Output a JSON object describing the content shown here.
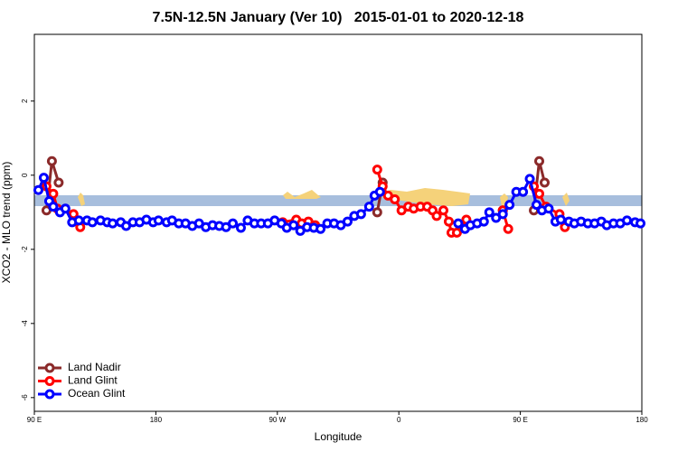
{
  "chart_data": {
    "type": "line",
    "title": "7.5N-12.5N January (Ver 10)   2015-01-01 to 2020-12-18",
    "x_label": "Longitude",
    "y_label": "XCO2 - MLO trend (ppm)",
    "xlim": [
      90,
      540
    ],
    "ylim": [
      -6.37,
      3.8
    ],
    "xticks": [
      {
        "value": 90,
        "label": "90 E"
      },
      {
        "value": 180,
        "label": "180"
      },
      {
        "value": 270,
        "label": "90 W"
      },
      {
        "value": 360,
        "label": "0"
      },
      {
        "value": 450,
        "label": "90 E"
      },
      {
        "value": 540,
        "label": "180"
      }
    ],
    "yticks": [
      -6,
      -4,
      -2,
      0,
      2
    ],
    "legend": "bottom-left",
    "series": [
      {
        "name": "Land Nadir",
        "color": "#8b2a2a",
        "x": [
          99,
          103,
          108,
          null,
          344,
          348,
          null,
          437,
          null,
          460,
          464,
          468
        ],
        "values": [
          -0.95,
          0.38,
          -0.2,
          null,
          -1.0,
          -0.2,
          null,
          -0.95,
          null,
          -0.95,
          0.38,
          -0.2
        ]
      },
      {
        "name": "Land Glint",
        "color": "#ff0000",
        "x": [
          99,
          104,
          107,
          119,
          124,
          null,
          274,
          284,
          288,
          293,
          298,
          null,
          344,
          348,
          352,
          357,
          362,
          367,
          371,
          376,
          381,
          385,
          388,
          393,
          397,
          399,
          403,
          410,
          null,
          437,
          441,
          null,
          460,
          464,
          469,
          479,
          483
        ],
        "values": [
          -0.3,
          -0.5,
          -0.9,
          -1.05,
          -1.4,
          null,
          -1.27,
          -1.2,
          -1.3,
          -1.25,
          -1.35,
          null,
          0.15,
          -0.3,
          -0.55,
          -0.65,
          -0.95,
          -0.85,
          -0.9,
          -0.85,
          -0.85,
          -0.95,
          -1.1,
          -0.95,
          -1.25,
          -1.55,
          -1.55,
          -1.2,
          null,
          -0.95,
          -1.45,
          null,
          -0.3,
          -0.5,
          -0.85,
          -1.05,
          -1.4
        ]
      },
      {
        "name": "Ocean Glint",
        "color": "#0000ff",
        "x": [
          93,
          97,
          101,
          104,
          109,
          113,
          118,
          123,
          129,
          133,
          139,
          144,
          148,
          154,
          158,
          163,
          168,
          173,
          178,
          182,
          188,
          192,
          197,
          202,
          207,
          212,
          217,
          222,
          227,
          232,
          237,
          243,
          248,
          253,
          258,
          263,
          268,
          273,
          277,
          282,
          287,
          292,
          297,
          302,
          307,
          312,
          317,
          322,
          327,
          332,
          338,
          342,
          346,
          null,
          404,
          409,
          413,
          418,
          423,
          427,
          432,
          437,
          442,
          447,
          452,
          457,
          462,
          466,
          471,
          476,
          480,
          486,
          490,
          495,
          500,
          505,
          510,
          514,
          519,
          524,
          529,
          535,
          539
        ],
        "values": [
          -0.4,
          -0.07,
          -0.7,
          -0.85,
          -1.0,
          -0.9,
          -1.27,
          -1.22,
          -1.22,
          -1.27,
          -1.22,
          -1.27,
          -1.3,
          -1.27,
          -1.37,
          -1.27,
          -1.27,
          -1.2,
          -1.27,
          -1.22,
          -1.27,
          -1.22,
          -1.3,
          -1.3,
          -1.37,
          -1.3,
          -1.4,
          -1.35,
          -1.37,
          -1.4,
          -1.3,
          -1.42,
          -1.22,
          -1.3,
          -1.3,
          -1.3,
          -1.22,
          -1.3,
          -1.42,
          -1.35,
          -1.5,
          -1.4,
          -1.42,
          -1.45,
          -1.3,
          -1.3,
          -1.35,
          -1.25,
          -1.1,
          -1.05,
          -0.85,
          -0.55,
          -0.45,
          null,
          -1.3,
          -1.45,
          -1.35,
          -1.3,
          -1.25,
          -1.0,
          -1.15,
          -1.05,
          -0.8,
          -0.45,
          -0.45,
          -0.1,
          -0.8,
          -0.95,
          -0.9,
          -1.25,
          -1.2,
          -1.25,
          -1.3,
          -1.25,
          -1.3,
          -1.3,
          -1.25,
          -1.35,
          -1.3,
          -1.3,
          -1.22,
          -1.27,
          -1.3
        ]
      }
    ]
  }
}
